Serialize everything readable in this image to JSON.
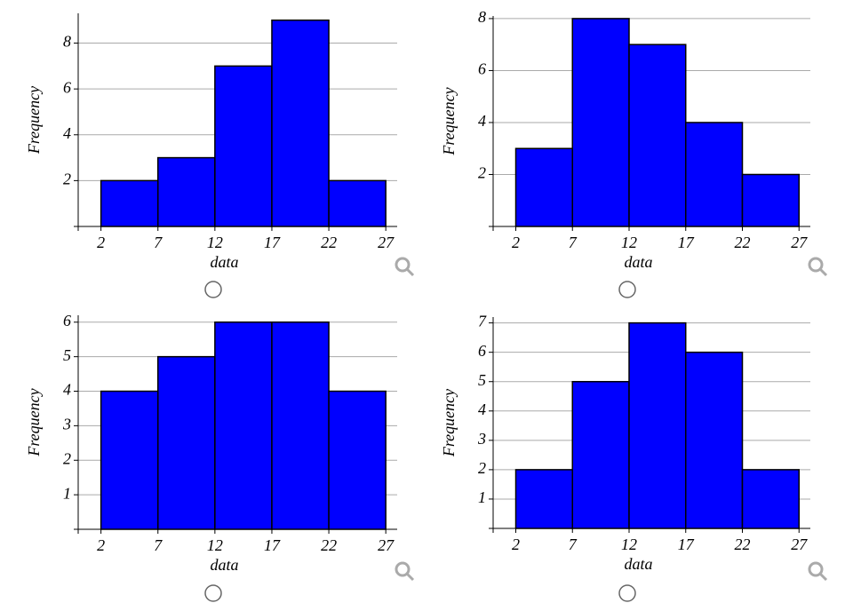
{
  "chart_data": [
    {
      "type": "histogram",
      "xlabel": "data",
      "ylabel": "Frequency",
      "bins": [
        2,
        7,
        12,
        17,
        22,
        27
      ],
      "counts": [
        2,
        3,
        7,
        9,
        2
      ],
      "color": "#0000ff",
      "xlim": [
        0,
        28
      ],
      "ylim": [
        0,
        9.3
      ],
      "xticks": [
        2,
        7,
        12,
        17,
        22,
        27
      ],
      "yticks": [
        2,
        4,
        6,
        8
      ],
      "grid": true
    },
    {
      "type": "histogram",
      "xlabel": "data",
      "ylabel": "Frequency",
      "bins": [
        2,
        7,
        12,
        17,
        22,
        27
      ],
      "counts": [
        3,
        8,
        7,
        4,
        2
      ],
      "color": "#0000ff",
      "xlim": [
        0,
        28
      ],
      "ylim": [
        0,
        8.1
      ],
      "xticks": [
        2,
        7,
        12,
        17,
        22,
        27
      ],
      "yticks": [
        2,
        4,
        6,
        8
      ],
      "grid": true
    },
    {
      "type": "histogram",
      "xlabel": "data",
      "ylabel": "Frequency",
      "bins": [
        2,
        7,
        12,
        17,
        22,
        27
      ],
      "counts": [
        4,
        5,
        6,
        6,
        4
      ],
      "color": "#0000ff",
      "xlim": [
        0,
        28
      ],
      "ylim": [
        0,
        6.2
      ],
      "xticks": [
        2,
        7,
        12,
        17,
        22,
        27
      ],
      "yticks": [
        1,
        2,
        3,
        4,
        5,
        6
      ],
      "grid": true
    },
    {
      "type": "histogram",
      "xlabel": "data",
      "ylabel": "Frequency",
      "bins": [
        2,
        7,
        12,
        17,
        22,
        27
      ],
      "counts": [
        2,
        5,
        7,
        6,
        2
      ],
      "color": "#0000ff",
      "xlim": [
        0,
        28
      ],
      "ylim": [
        0,
        7.2
      ],
      "xticks": [
        2,
        7,
        12,
        17,
        22,
        27
      ],
      "yticks": [
        1,
        2,
        3,
        4,
        5,
        6,
        7
      ],
      "grid": true
    }
  ]
}
